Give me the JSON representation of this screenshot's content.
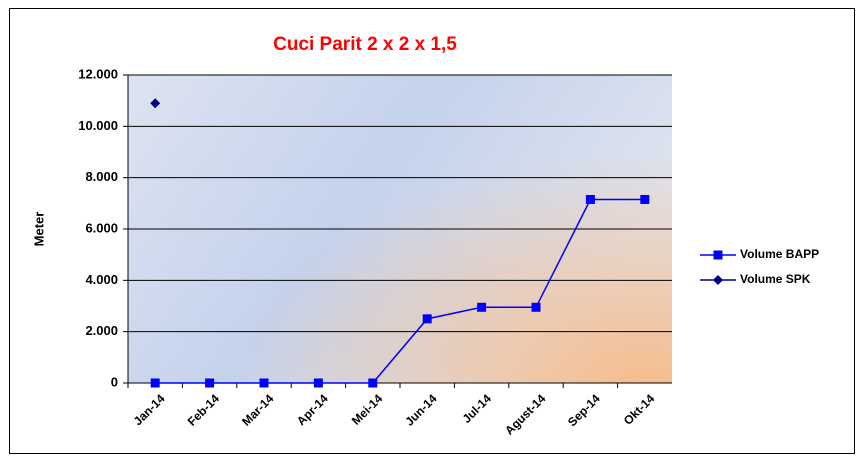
{
  "chart_data": {
    "type": "line",
    "title": "Cuci Parit 2 x 2 x 1,5",
    "title_color": "#ff0000",
    "y_label": "Meter",
    "categories": [
      "Jan-14",
      "Feb-14",
      "Mar-14",
      "Apr-14",
      "Mei-14",
      "Jun-14",
      "Jul-14",
      "Agust-14",
      "Sep-14",
      "Okt-14"
    ],
    "series": [
      {
        "name": "Volume BAPP",
        "color": "#0000ff",
        "marker": "square",
        "values": [
          0,
          0,
          0,
          0,
          0,
          2500,
          2950,
          2950,
          7150,
          7150
        ]
      },
      {
        "name": "Volume SPK",
        "color": "#000080",
        "marker": "diamond",
        "values": [
          10900,
          null,
          null,
          null,
          null,
          null,
          null,
          null,
          null,
          null
        ]
      }
    ],
    "ylim": [
      0,
      12000
    ],
    "yticks": [
      0,
      {
        "value": 2000,
        "label": "2.000"
      },
      {
        "value": 4000,
        "label": "4.000"
      },
      {
        "value": 6000,
        "label": "6.000"
      },
      {
        "value": 8000,
        "label": "8.000"
      },
      {
        "value": 10000,
        "label": "10.000"
      },
      {
        "value": 12000,
        "label": "12.000"
      }
    ],
    "grid": true,
    "legend": "right"
  }
}
